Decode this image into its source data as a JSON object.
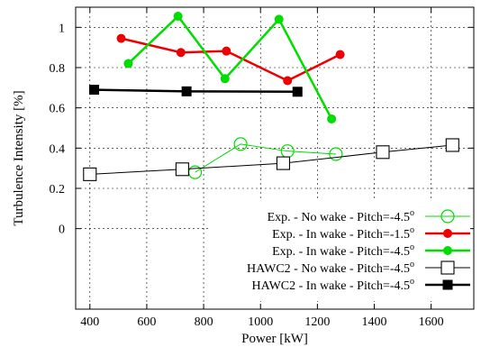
{
  "chart_data": {
    "type": "line",
    "xlabel": "Power [kW]",
    "ylabel": "Turbulence Intensity [%]",
    "xlim": [
      350,
      1750
    ],
    "ylim": [
      -0.4,
      1.1
    ],
    "xticks": [
      400,
      600,
      800,
      1000,
      1200,
      1400,
      1600
    ],
    "yticks": [
      0,
      0.2,
      0.4,
      0.6,
      0.8,
      1
    ],
    "xtick_labels": [
      "400",
      "600",
      "800",
      "1000",
      "1200",
      "1400",
      "1600"
    ],
    "ytick_labels": [
      "0",
      "0.2",
      "0.4",
      "0.6",
      "0.8",
      "1"
    ],
    "grid": true,
    "legend_position": "bottom-right",
    "series": [
      {
        "name": "Exp. - No wake - Pitch=-4.5°",
        "legend_text": "Exp. - No wake - Pitch=-4.5",
        "legend_sup": "o",
        "color": "#00dd00",
        "marker": "open-circle",
        "stroke_width": 1,
        "x": [
          770,
          930,
          1095,
          1265
        ],
        "y": [
          0.28,
          0.42,
          0.385,
          0.37
        ]
      },
      {
        "name": "Exp. - In wake - Pitch=-1.5°",
        "legend_text": "Exp. - In wake - Pitch=-1.5",
        "legend_sup": "o",
        "color": "#ee0000",
        "marker": "filled-circle",
        "stroke_width": 2.5,
        "x": [
          510,
          720,
          880,
          1095,
          1280
        ],
        "y": [
          0.945,
          0.875,
          0.882,
          0.735,
          0.865
        ]
      },
      {
        "name": "Exp. - In wake - Pitch=-4.5°",
        "legend_text": "Exp. - In wake - Pitch=-4.5",
        "legend_sup": "o",
        "color": "#00dd00",
        "marker": "filled-circle",
        "stroke_width": 2.5,
        "x": [
          535,
          710,
          875,
          1065,
          1250
        ],
        "y": [
          0.82,
          1.055,
          0.745,
          1.04,
          0.545
        ]
      },
      {
        "name": "HAWC2 - No wake - Pitch=-4.5°",
        "legend_text": "HAWC2 - No wake - Pitch=-4.5",
        "legend_sup": "o",
        "color": "#000000",
        "marker": "open-square",
        "stroke_width": 1,
        "x": [
          400,
          725,
          1080,
          1430,
          1675
        ],
        "y": [
          0.27,
          0.295,
          0.325,
          0.38,
          0.415
        ]
      },
      {
        "name": "HAWC2 - In wake - Pitch=-4.5°",
        "legend_text": "HAWC2 - In wake - Pitch=-4.5",
        "legend_sup": "o",
        "color": "#000000",
        "marker": "filled-square",
        "stroke_width": 2.5,
        "x": [
          415,
          740,
          1130
        ],
        "y": [
          0.69,
          0.682,
          0.68
        ]
      }
    ]
  }
}
